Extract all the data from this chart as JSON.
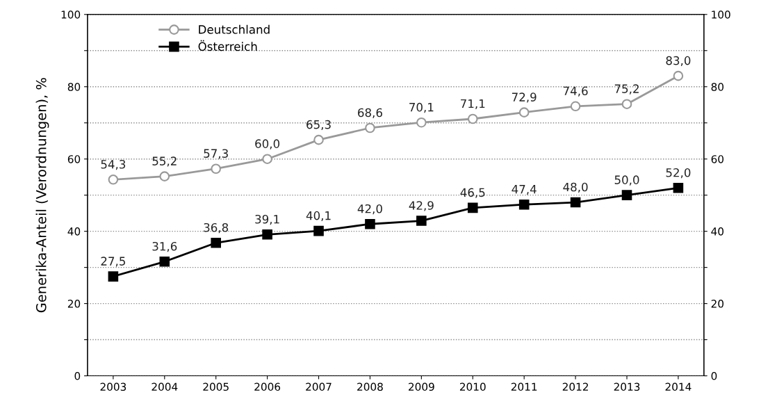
{
  "chart_data": {
    "type": "line",
    "ylabel": "Generika-Anteil (Verordnungen), %",
    "categories": [
      "2003",
      "2004",
      "2005",
      "2006",
      "2007",
      "2008",
      "2009",
      "2010",
      "2011",
      "2012",
      "2013",
      "2014"
    ],
    "series": [
      {
        "name": "Deutschland",
        "color": "#999999",
        "marker": "circle",
        "values": [
          54.3,
          55.2,
          57.3,
          60.0,
          65.3,
          68.6,
          70.1,
          71.1,
          72.9,
          74.6,
          75.2,
          83.0
        ],
        "value_labels": [
          "54,3",
          "55,2",
          "57,3",
          "60,0",
          "65,3",
          "68,6",
          "70,1",
          "71,1",
          "72,9",
          "74,6",
          "75,2",
          "83,0"
        ]
      },
      {
        "name": "Österreich",
        "color": "#000000",
        "marker": "square",
        "values": [
          27.5,
          31.6,
          36.8,
          39.1,
          40.1,
          42.0,
          42.9,
          46.5,
          47.4,
          48.0,
          50.0,
          52.0
        ],
        "value_labels": [
          "27,5",
          "31,6",
          "36,8",
          "39,1",
          "40,1",
          "42,0",
          "42,9",
          "46,5",
          "47,4",
          "48,0",
          "50,0",
          "52,0"
        ]
      }
    ],
    "ylim": [
      0,
      100
    ],
    "yticks": [
      0,
      {
        "value": 10,
        "label": null
      },
      20,
      {
        "value": 30,
        "label": null
      },
      40,
      {
        "value": 50,
        "label": null
      },
      60,
      {
        "value": 70,
        "label": null
      },
      80,
      {
        "value": 90,
        "label": null
      },
      100
    ],
    "y2lim": [
      0,
      100
    ],
    "y2ticks": [
      0,
      {
        "value": 10,
        "label": null
      },
      20,
      {
        "value": 30,
        "label": null
      },
      40,
      {
        "value": 50,
        "label": null
      },
      60,
      {
        "value": 70,
        "label": null
      },
      80,
      {
        "value": 90,
        "label": null
      },
      100
    ],
    "grid": "y",
    "legend": "top left",
    "line_style": "solid"
  }
}
